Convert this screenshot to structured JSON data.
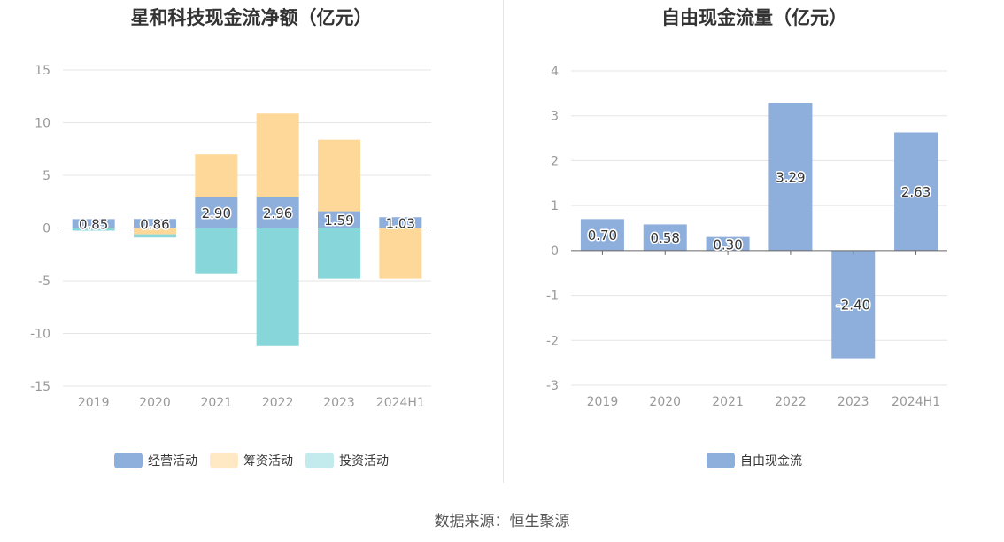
{
  "source": "数据来源：恒生聚源",
  "colors": {
    "operating": "#8eaedc",
    "financing": "#fed898",
    "investing": "#87d6d9",
    "free_cf": "#8eaedc",
    "grid": "#e5e5e5",
    "axis_text": "#999999"
  },
  "chart_data": [
    {
      "type": "bar",
      "stacked": true,
      "title": "星和科技现金流净额（亿元）",
      "categories": [
        "2019",
        "2020",
        "2021",
        "2022",
        "2023",
        "2024H1"
      ],
      "ylim": [
        -15,
        15
      ],
      "yticks": [
        15,
        10,
        5,
        0,
        -5,
        -10,
        -15
      ],
      "grid": true,
      "legend_position": "bottom",
      "series": [
        {
          "name": "经营活动",
          "color": "#8eaedc",
          "values": [
            0.85,
            0.86,
            2.9,
            2.96,
            1.59,
            1.03
          ],
          "show_labels": true
        },
        {
          "name": "筹资活动",
          "color": "#fed898",
          "values": [
            0.0,
            -0.6,
            4.1,
            7.9,
            6.8,
            -4.8
          ],
          "show_labels": false
        },
        {
          "name": "投资活动",
          "color": "#87d6d9",
          "values": [
            -0.25,
            -0.3,
            -4.3,
            -11.2,
            -4.8,
            0.0
          ],
          "show_labels": false
        }
      ],
      "legend": [
        {
          "name": "经营活动",
          "color": "#8eaedc"
        },
        {
          "name": "筹资活动",
          "color": "#ffe8c4"
        },
        {
          "name": "投资活动",
          "color": "#c3eaec"
        }
      ]
    },
    {
      "type": "bar",
      "title": "自由现金流量（亿元）",
      "categories": [
        "2019",
        "2020",
        "2021",
        "2022",
        "2023",
        "2024H1"
      ],
      "ylim": [
        -3,
        4
      ],
      "yticks": [
        4,
        3,
        2,
        1,
        0,
        -1,
        -2,
        -3
      ],
      "grid": true,
      "legend_position": "bottom",
      "series": [
        {
          "name": "自由现金流",
          "color": "#8eaedc",
          "values": [
            0.7,
            0.58,
            0.3,
            3.29,
            -2.4,
            2.63
          ],
          "show_labels": true
        }
      ],
      "legend": [
        {
          "name": "自由现金流",
          "color": "#8eaedc"
        }
      ]
    }
  ]
}
